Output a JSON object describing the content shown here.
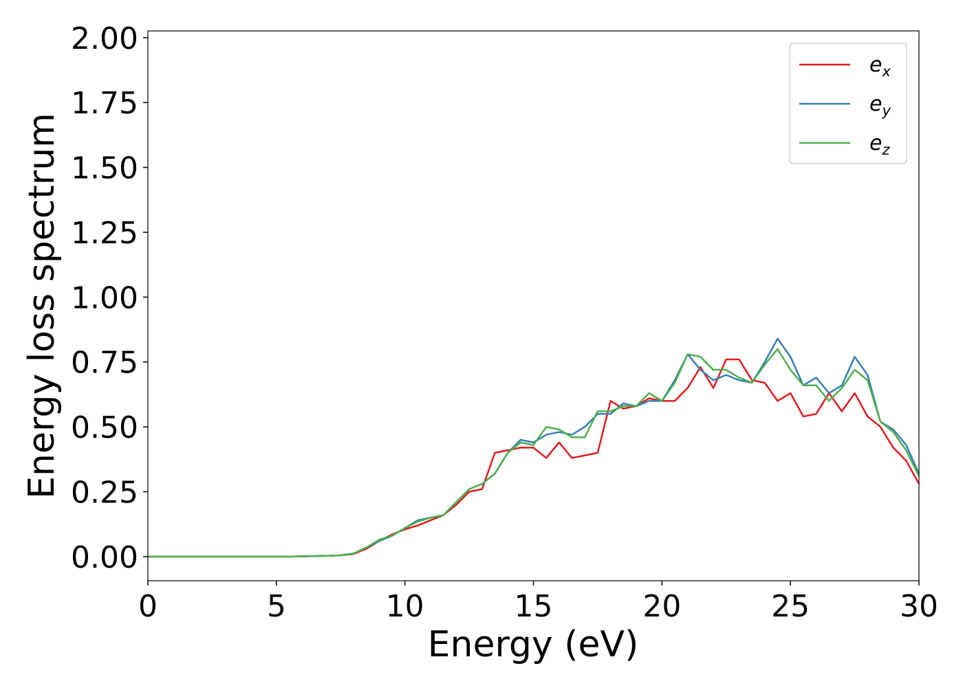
{
  "chart_data": {
    "type": "line",
    "x_label": "Energy (eV)",
    "y_label": "Energy loss spectrum",
    "x": [
      0,
      0.5,
      1,
      1.5,
      2,
      2.5,
      3,
      3.5,
      4,
      4.5,
      5,
      5.5,
      6,
      6.5,
      7,
      7.5,
      8,
      8.5,
      9,
      9.5,
      10,
      10.5,
      11,
      11.5,
      12,
      12.5,
      13,
      13.5,
      14,
      14.5,
      15,
      15.5,
      16,
      16.5,
      17,
      17.5,
      18,
      18.5,
      19,
      19.5,
      20,
      20.5,
      21,
      21.5,
      22,
      22.5,
      23,
      23.5,
      24,
      24.5,
      25,
      25.5,
      26,
      26.5,
      27,
      27.5,
      28,
      28.5,
      29,
      29.5,
      30
    ],
    "series": [
      {
        "name": "ex",
        "color": "#e41a1c",
        "values": [
          0,
          0,
          0,
          0,
          0,
          0,
          0,
          0,
          0,
          0,
          0,
          0,
          0.001,
          0.002,
          0.003,
          0.005,
          0.01,
          0.03,
          0.06,
          0.085,
          0.105,
          0.12,
          0.14,
          0.16,
          0.2,
          0.25,
          0.26,
          0.4,
          0.41,
          0.42,
          0.42,
          0.38,
          0.44,
          0.38,
          0.39,
          0.4,
          0.6,
          0.57,
          0.58,
          0.61,
          0.6,
          0.6,
          0.65,
          0.73,
          0.65,
          0.76,
          0.76,
          0.68,
          0.67,
          0.6,
          0.63,
          0.54,
          0.55,
          0.63,
          0.56,
          0.63,
          0.54,
          0.5,
          0.42,
          0.37,
          0.28
        ]
      },
      {
        "name": "ey",
        "color": "#377eb8",
        "values": [
          0,
          0,
          0,
          0,
          0,
          0,
          0,
          0,
          0,
          0,
          0,
          0,
          0.001,
          0.002,
          0.003,
          0.005,
          0.012,
          0.035,
          0.06,
          0.08,
          0.11,
          0.14,
          0.15,
          0.16,
          0.21,
          0.26,
          0.28,
          0.32,
          0.4,
          0.45,
          0.44,
          0.47,
          0.48,
          0.47,
          0.5,
          0.55,
          0.55,
          0.59,
          0.58,
          0.6,
          0.6,
          0.68,
          0.78,
          0.72,
          0.68,
          0.7,
          0.68,
          0.67,
          0.75,
          0.84,
          0.77,
          0.66,
          0.69,
          0.63,
          0.66,
          0.77,
          0.7,
          0.52,
          0.49,
          0.43,
          0.32
        ]
      },
      {
        "name": "ez",
        "color": "#4daf4a",
        "values": [
          0,
          0,
          0,
          0,
          0,
          0,
          0,
          0,
          0,
          0,
          0,
          0,
          0.001,
          0.002,
          0.003,
          0.005,
          0.012,
          0.035,
          0.065,
          0.08,
          0.11,
          0.135,
          0.15,
          0.16,
          0.21,
          0.26,
          0.28,
          0.32,
          0.4,
          0.44,
          0.43,
          0.5,
          0.49,
          0.46,
          0.46,
          0.56,
          0.56,
          0.58,
          0.58,
          0.63,
          0.6,
          0.67,
          0.78,
          0.77,
          0.72,
          0.72,
          0.69,
          0.67,
          0.74,
          0.8,
          0.72,
          0.66,
          0.66,
          0.6,
          0.65,
          0.72,
          0.68,
          0.52,
          0.48,
          0.41,
          0.31
        ]
      }
    ],
    "xlim": [
      0,
      30
    ],
    "xticks": [
      0,
      5,
      10,
      15,
      20,
      25,
      30
    ],
    "ylim": [
      -0.093,
      2.026
    ],
    "yticks": [
      {
        "value": 0,
        "label": "0.00"
      },
      {
        "value": 0.25,
        "label": "0.25"
      },
      {
        "value": 0.5,
        "label": "0.50"
      },
      {
        "value": 0.75,
        "label": "0.75"
      },
      {
        "value": 1,
        "label": "1.00"
      },
      {
        "value": 1.25,
        "label": "1.25"
      },
      {
        "value": 1.5,
        "label": "1.50"
      },
      {
        "value": 1.75,
        "label": "1.75"
      },
      {
        "value": 2,
        "label": "2.00"
      }
    ],
    "legend": "upper right",
    "grid": false
  }
}
